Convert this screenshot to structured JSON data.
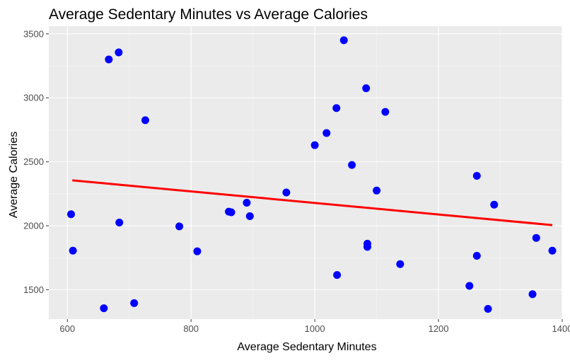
{
  "chart_data": {
    "type": "scatter",
    "title": "Average Sedentary Minutes vs Average Calories",
    "xlabel": "Average Sedentary Minutes",
    "ylabel": "Average Calories",
    "xlim": [
      570,
      1400
    ],
    "ylim": [
      1270,
      3560
    ],
    "x_ticks": [
      600,
      800,
      1000,
      1200,
      1400
    ],
    "y_ticks": [
      1500,
      2000,
      2500,
      3000,
      3500
    ],
    "x_tick_labels": [
      "600",
      "800",
      "1000",
      "1200",
      "1400"
    ],
    "y_tick_labels": [
      "1500",
      "2000",
      "2500",
      "3000",
      "3500"
    ],
    "grid": true,
    "legend": "none",
    "colors": {
      "panel_background": "#ebebeb",
      "grid_major": "#ffffff",
      "points": "#0000ff",
      "trend_line": "#ff0000"
    },
    "series": [
      {
        "values": [
          {
            "x": 606,
            "y": 2090
          },
          {
            "x": 609,
            "y": 1805
          },
          {
            "x": 659,
            "y": 1355
          },
          {
            "x": 667,
            "y": 3300
          },
          {
            "x": 683,
            "y": 3355
          },
          {
            "x": 684,
            "y": 2025
          },
          {
            "x": 708,
            "y": 1395
          },
          {
            "x": 726,
            "y": 2825
          },
          {
            "x": 781,
            "y": 1995
          },
          {
            "x": 810,
            "y": 1800
          },
          {
            "x": 861,
            "y": 2110
          },
          {
            "x": 865,
            "y": 2105
          },
          {
            "x": 890,
            "y": 2180
          },
          {
            "x": 895,
            "y": 2075
          },
          {
            "x": 954,
            "y": 2260
          },
          {
            "x": 1000,
            "y": 2630
          },
          {
            "x": 1019,
            "y": 2725
          },
          {
            "x": 1035,
            "y": 2920
          },
          {
            "x": 1036,
            "y": 1615
          },
          {
            "x": 1047,
            "y": 3450
          },
          {
            "x": 1060,
            "y": 2475
          },
          {
            "x": 1083,
            "y": 3075
          },
          {
            "x": 1085,
            "y": 1860
          },
          {
            "x": 1085,
            "y": 1835
          },
          {
            "x": 1100,
            "y": 2275
          },
          {
            "x": 1114,
            "y": 2890
          },
          {
            "x": 1138,
            "y": 1700
          },
          {
            "x": 1250,
            "y": 1530
          },
          {
            "x": 1262,
            "y": 2390
          },
          {
            "x": 1262,
            "y": 1765
          },
          {
            "x": 1280,
            "y": 1350
          },
          {
            "x": 1290,
            "y": 2165
          },
          {
            "x": 1352,
            "y": 1465
          },
          {
            "x": 1358,
            "y": 1905
          },
          {
            "x": 1384,
            "y": 1805
          }
        ]
      }
    ],
    "trend_line": {
      "x": [
        608,
        1384
      ],
      "y": [
        2355,
        2005
      ]
    }
  }
}
